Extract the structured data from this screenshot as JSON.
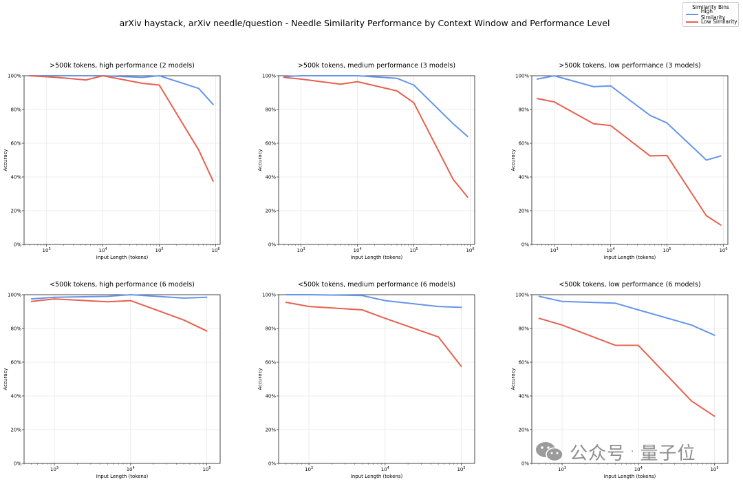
{
  "suptitle": "arXiv haystack, arXiv needle/question - Needle Similarity Performance by Context Window and Performance Level",
  "legend": {
    "title": "Similarity Bins",
    "entries": [
      {
        "label": "High Similarity",
        "color": "#6495ED"
      },
      {
        "label": "Low Similarity",
        "color": "#E8604C"
      }
    ]
  },
  "watermark": {
    "left": "公众号",
    "sep": "·",
    "right": "量子位"
  },
  "chart_data": [
    {
      "type": "line",
      "title": ">500k tokens, high performance (2 models)",
      "xlabel": "Input Length (tokens)",
      "ylabel": "Accuracy",
      "xscale": "log",
      "xlim": [
        400,
        1200000
      ],
      "ylim": [
        0,
        1
      ],
      "xticks": [
        {
          "v": 1000,
          "b": "10",
          "e": "3"
        },
        {
          "v": 10000,
          "b": "10",
          "e": "4"
        },
        {
          "v": 100000,
          "b": "10",
          "e": "5"
        },
        {
          "v": 1000000,
          "b": "10",
          "e": "6"
        }
      ],
      "yticks": [
        "0%",
        "20%",
        "40%",
        "60%",
        "80%",
        "100%"
      ],
      "series": [
        {
          "name": "High Similarity",
          "color": "#6495ED",
          "x": [
            500,
            1500,
            5000,
            10000,
            50000,
            100000,
            500000,
            900000
          ],
          "y": [
            1.0,
            1.0,
            1.0,
            1.0,
            0.99,
            1.0,
            0.925,
            0.83
          ]
        },
        {
          "name": "Low Similarity",
          "color": "#E8604C",
          "x": [
            500,
            1500,
            5000,
            10000,
            50000,
            100000,
            500000,
            900000
          ],
          "y": [
            1.0,
            0.99,
            0.975,
            1.0,
            0.955,
            0.945,
            0.56,
            0.375
          ]
        }
      ]
    },
    {
      "type": "line",
      "title": ">500k tokens, medium performance (3 models)",
      "xlabel": "Input Length (tokens)",
      "ylabel": "Accuracy",
      "xscale": "log",
      "xlim": [
        400,
        1200000
      ],
      "ylim": [
        0,
        1
      ],
      "xticks": [
        {
          "v": 1000,
          "b": "10",
          "e": "3"
        },
        {
          "v": 10000,
          "b": "10",
          "e": "4"
        },
        {
          "v": 100000,
          "b": "10",
          "e": "5"
        },
        {
          "v": 1000000,
          "b": "10",
          "e": "6"
        }
      ],
      "yticks": [
        "0%",
        "20%",
        "40%",
        "60%",
        "80%",
        "100%"
      ],
      "series": [
        {
          "name": "High Similarity",
          "color": "#6495ED",
          "x": [
            500,
            1000,
            5000,
            10000,
            50000,
            100000,
            500000,
            900000
          ],
          "y": [
            0.995,
            1.0,
            1.0,
            1.0,
            0.985,
            0.945,
            0.715,
            0.64
          ]
        },
        {
          "name": "Low Similarity",
          "color": "#E8604C",
          "x": [
            500,
            1000,
            5000,
            10000,
            50000,
            100000,
            500000,
            900000
          ],
          "y": [
            0.99,
            0.98,
            0.95,
            0.965,
            0.91,
            0.84,
            0.385,
            0.28
          ]
        }
      ]
    },
    {
      "type": "line",
      "title": ">500k tokens, low performance (3 models)",
      "xlabel": "Input Length (tokens)",
      "ylabel": "Accuracy",
      "xscale": "log",
      "xlim": [
        400,
        1200000
      ],
      "ylim": [
        0,
        1
      ],
      "xticks": [
        {
          "v": 1000,
          "b": "10",
          "e": "3"
        },
        {
          "v": 10000,
          "b": "10",
          "e": "4"
        },
        {
          "v": 100000,
          "b": "10",
          "e": "5"
        },
        {
          "v": 1000000,
          "b": "10",
          "e": "6"
        }
      ],
      "yticks": [
        "0%",
        "20%",
        "40%",
        "60%",
        "80%",
        "100%"
      ],
      "series": [
        {
          "name": "High Similarity",
          "color": "#6495ED",
          "x": [
            500,
            1000,
            5000,
            10000,
            50000,
            100000,
            500000,
            900000
          ],
          "y": [
            0.98,
            1.0,
            0.935,
            0.94,
            0.765,
            0.72,
            0.5,
            0.525
          ]
        },
        {
          "name": "Low Similarity",
          "color": "#E8604C",
          "x": [
            500,
            1000,
            5000,
            10000,
            50000,
            100000,
            500000,
            900000
          ],
          "y": [
            0.865,
            0.845,
            0.715,
            0.705,
            0.525,
            0.527,
            0.17,
            0.115
          ]
        }
      ]
    },
    {
      "type": "line",
      "title": "<500k tokens, high performance (6 models)",
      "xlabel": "Input Length (tokens)",
      "ylabel": "Accuracy",
      "xscale": "log",
      "xlim": [
        400,
        150000
      ],
      "ylim": [
        0,
        1
      ],
      "xticks": [
        {
          "v": 1000,
          "b": "10",
          "e": "3"
        },
        {
          "v": 10000,
          "b": "10",
          "e": "4"
        },
        {
          "v": 100000,
          "b": "10",
          "e": "5"
        }
      ],
      "yticks": [
        "0%",
        "20%",
        "40%",
        "60%",
        "80%",
        "100%"
      ],
      "series": [
        {
          "name": "High Similarity",
          "color": "#6495ED",
          "x": [
            500,
            1000,
            5000,
            10000,
            50000,
            100000
          ],
          "y": [
            0.975,
            0.985,
            0.99,
            1.0,
            0.98,
            0.985
          ]
        },
        {
          "name": "Low Similarity",
          "color": "#E8604C",
          "x": [
            500,
            1000,
            5000,
            10000,
            50000,
            100000
          ],
          "y": [
            0.96,
            0.975,
            0.958,
            0.965,
            0.85,
            0.785
          ]
        }
      ]
    },
    {
      "type": "line",
      "title": "<500k tokens, medium performance (6 models)",
      "xlabel": "Input Length (tokens)",
      "ylabel": "Accuracy",
      "xscale": "log",
      "xlim": [
        400,
        150000
      ],
      "ylim": [
        0,
        1
      ],
      "xticks": [
        {
          "v": 1000,
          "b": "10",
          "e": "3"
        },
        {
          "v": 10000,
          "b": "10",
          "e": "4"
        },
        {
          "v": 100000,
          "b": "10",
          "e": "5"
        }
      ],
      "yticks": [
        "0%",
        "20%",
        "40%",
        "60%",
        "80%",
        "100%"
      ],
      "series": [
        {
          "name": "High Similarity",
          "color": "#6495ED",
          "x": [
            500,
            1000,
            5000,
            10000,
            50000,
            100000
          ],
          "y": [
            1.0,
            1.0,
            0.995,
            0.965,
            0.93,
            0.925
          ]
        },
        {
          "name": "Low Similarity",
          "color": "#E8604C",
          "x": [
            500,
            1000,
            5000,
            10000,
            50000,
            100000
          ],
          "y": [
            0.955,
            0.93,
            0.91,
            0.86,
            0.75,
            0.575
          ]
        }
      ]
    },
    {
      "type": "line",
      "title": "<500k tokens, low performance (6 models)",
      "xlabel": "Input Length (tokens)",
      "ylabel": "Accuracy",
      "xscale": "log",
      "xlim": [
        400,
        150000
      ],
      "ylim": [
        0,
        1
      ],
      "xticks": [
        {
          "v": 1000,
          "b": "10",
          "e": "3"
        },
        {
          "v": 10000,
          "b": "10",
          "e": "4"
        },
        {
          "v": 100000,
          "b": "10",
          "e": "5"
        }
      ],
      "yticks": [
        "0%",
        "20%",
        "40%",
        "60%",
        "80%",
        "100%"
      ],
      "series": [
        {
          "name": "High Similarity",
          "color": "#6495ED",
          "x": [
            500,
            1000,
            5000,
            10000,
            50000,
            100000
          ],
          "y": [
            0.99,
            0.96,
            0.95,
            0.91,
            0.82,
            0.76
          ]
        },
        {
          "name": "Low Similarity",
          "color": "#E8604C",
          "x": [
            500,
            1000,
            5000,
            10000,
            50000,
            100000
          ],
          "y": [
            0.86,
            0.82,
            0.7,
            0.7,
            0.37,
            0.28
          ]
        }
      ]
    }
  ]
}
